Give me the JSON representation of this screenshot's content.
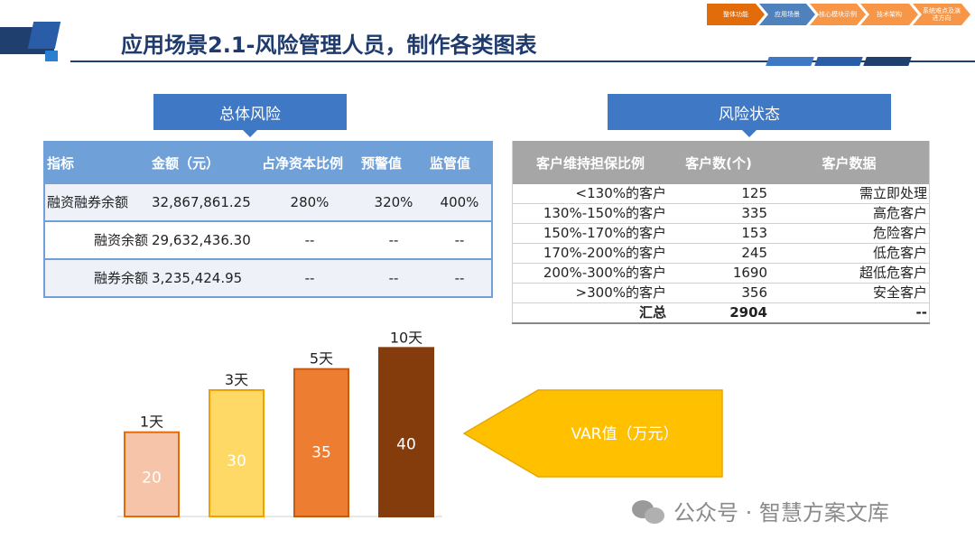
{
  "header": {
    "title": "应用场景2.1-风险管理人员，制作各类图表"
  },
  "nav": {
    "steps": [
      {
        "label": "整体功能",
        "color": "#e36c0a"
      },
      {
        "label": "应用场景",
        "color": "#4f81bd"
      },
      {
        "label": "核心模块示例",
        "color": "#f79646"
      },
      {
        "label": "技术架构",
        "color": "#f79646"
      },
      {
        "label": "系统难点及演进方向",
        "color": "#f79646"
      }
    ]
  },
  "rule_colors": [
    "#3f78c4",
    "#2a5da8",
    "#1f3f6e"
  ],
  "total_risk": {
    "section_label": "总体风险",
    "headers": [
      "指标",
      "金额（元）",
      "占净资本比例",
      "预警值",
      "监管值"
    ],
    "rows": [
      [
        "融资融券余额",
        "32,867,861.25",
        "280%",
        "320%",
        "400%"
      ],
      [
        "融资余额",
        "29,632,436.30",
        "--",
        "--",
        "--"
      ],
      [
        "融券余额",
        "3,235,424.95",
        "--",
        "--",
        "--"
      ]
    ]
  },
  "risk_status": {
    "section_label": "风险状态",
    "headers": [
      "客户维持担保比例",
      "客户数(个)",
      "客户数据"
    ],
    "rows": [
      [
        "<130%的客户",
        "125",
        "需立即处理"
      ],
      [
        "130%-150%的客户",
        "335",
        "高危客户"
      ],
      [
        "150%-170%的客户",
        "153",
        "危险客户"
      ],
      [
        "170%-200%的客户",
        "245",
        "低危客户"
      ],
      [
        "200%-300%的客户",
        "1690",
        "超低危客户"
      ],
      [
        ">300%的客户",
        "356",
        "安全客户"
      ]
    ],
    "total": [
      "汇总",
      "2904",
      "--"
    ]
  },
  "chart_data": {
    "type": "bar",
    "categories": [
      "1天",
      "3天",
      "5天",
      "10天"
    ],
    "values": [
      20,
      30,
      35,
      40
    ],
    "colors": [
      "#f6c4a8",
      "#ffd966",
      "#ed7d31",
      "#843c0c"
    ],
    "edge_colors": [
      "#e36c0a",
      "#f0a000",
      "#c55a11",
      "#843c0c"
    ],
    "label_color": "#ffffff",
    "ylim": [
      0,
      45
    ]
  },
  "var_arrow": {
    "label": "VAR值（万元）",
    "fill": "#ffc000",
    "stroke": "#e6a700"
  },
  "watermark": {
    "text": "公众号 · 智慧方案文库"
  }
}
